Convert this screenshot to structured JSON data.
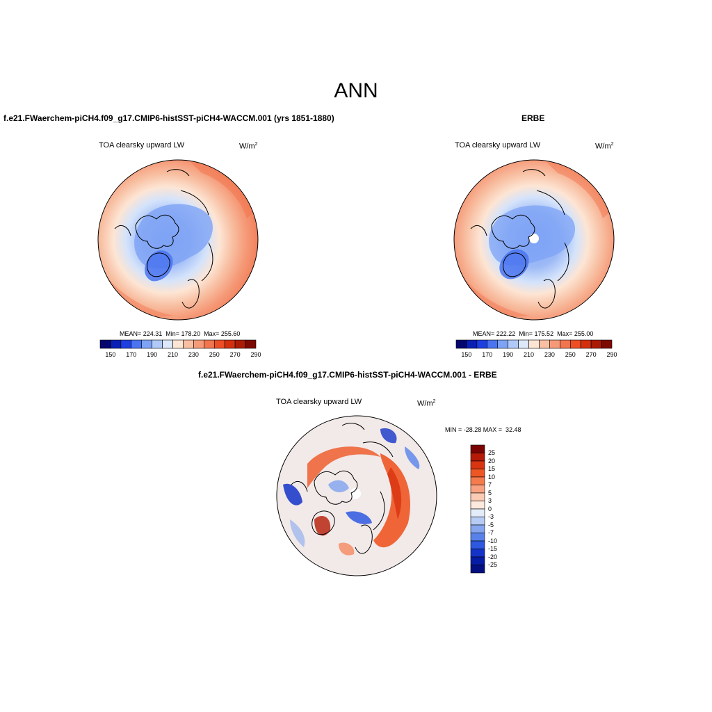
{
  "figure": {
    "title": "ANN"
  },
  "panels": [
    {
      "id": "model",
      "title": "f.e21.FWaerchem-piCH4.f09_g17.CMIP6-histSST-piCH4-WACCM.001 (yrs 1851-1880)",
      "variable": "TOA clearsky upward LW",
      "units_base": "W/m",
      "units_sup": "2",
      "stats": "MEAN= 224.31  Min= 178.20  Max= 255.60",
      "colorbar_ticks": [
        "150",
        "170",
        "190",
        "210",
        "230",
        "250",
        "270",
        "290"
      ],
      "colorbar_colors": [
        "#06066e",
        "#0a1fb4",
        "#1e3fe0",
        "#4a74f0",
        "#7ea3f5",
        "#b0c9f8",
        "#dde9fb",
        "#fde5d4",
        "#f8c0a3",
        "#f59a78",
        "#f17650",
        "#ec4f25",
        "#d2300e",
        "#ab1c06",
        "#7d0a02"
      ]
    },
    {
      "id": "obs",
      "title": "ERBE",
      "variable": "TOA clearsky upward LW",
      "units_base": "W/m",
      "units_sup": "2",
      "stats": "MEAN= 222.22  Min= 175.52  Max= 255.00",
      "colorbar_ticks": [
        "150",
        "170",
        "190",
        "210",
        "230",
        "250",
        "270",
        "290"
      ],
      "colorbar_colors": [
        "#06066e",
        "#0a1fb4",
        "#1e3fe0",
        "#4a74f0",
        "#7ea3f5",
        "#b0c9f8",
        "#dde9fb",
        "#fde5d4",
        "#f8c0a3",
        "#f59a78",
        "#f17650",
        "#ec4f25",
        "#d2300e",
        "#ab1c06",
        "#7d0a02"
      ]
    },
    {
      "id": "diff",
      "title": "f.e21.FWaerchem-piCH4.f09_g17.CMIP6-histSST-piCH4-WACCM.001 - ERBE",
      "variable": "TOA clearsky upward LW",
      "units_base": "W/m",
      "units_sup": "2",
      "stats": "MIN = -28.28 MAX =  32.48",
      "colorbar_ticks": [
        "25",
        "20",
        "15",
        "10",
        "7",
        "5",
        "3",
        "0",
        "-3",
        "-5",
        "-7",
        "-10",
        "-15",
        "-20",
        "-25"
      ],
      "colorbar_colors": [
        "#7a0403",
        "#b41a05",
        "#d83510",
        "#ee5624",
        "#f57a4c",
        "#f8a282",
        "#fbcbb4",
        "#fde9dd",
        "#e4ecf9",
        "#b6ccf5",
        "#86a7ef",
        "#5882ea",
        "#2e58e0",
        "#1433c8",
        "#061ca6",
        "#030f80"
      ]
    }
  ]
}
